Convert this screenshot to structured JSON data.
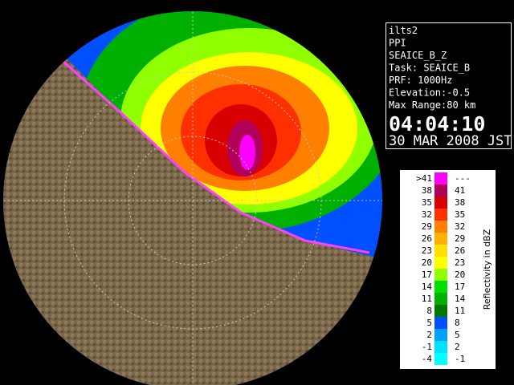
{
  "info": {
    "lines": [
      "ilts2",
      "PPI",
      "SEAICE_B_Z",
      "Task: SEAICE_B",
      "PRF: 1000Hz",
      "Elevation:-0.5",
      "Max Range:80 km"
    ],
    "time": "04:04:10",
    "date": "30 MAR 2008 JST"
  },
  "legend": {
    "title": "Reflectivity in dBZ",
    "rows": [
      {
        "low": ">41",
        "high": "---",
        "color": "#ff00ff"
      },
      {
        "low": "38",
        "high": "41",
        "color": "#b0005a"
      },
      {
        "low": "35",
        "high": "38",
        "color": "#d80000"
      },
      {
        "low": "32",
        "high": "35",
        "color": "#ff3000"
      },
      {
        "low": "29",
        "high": "32",
        "color": "#ff8000"
      },
      {
        "low": "26",
        "high": "29",
        "color": "#ffb000"
      },
      {
        "low": "23",
        "high": "26",
        "color": "#ffe000"
      },
      {
        "low": "20",
        "high": "23",
        "color": "#ffff00"
      },
      {
        "low": "17",
        "high": "20",
        "color": "#90ff00"
      },
      {
        "low": "14",
        "high": "17",
        "color": "#00e000"
      },
      {
        "low": "11",
        "high": "14",
        "color": "#00b000"
      },
      {
        "low": "8",
        "high": "11",
        "color": "#007800"
      },
      {
        "low": "5",
        "high": "8",
        "color": "#0050ff"
      },
      {
        "low": "2",
        "high": "5",
        "color": "#00a0ff"
      },
      {
        "low": "-1",
        "high": "2",
        "color": "#00e0ff"
      },
      {
        "low": "-4",
        "high": "-1",
        "color": "#00ffff"
      }
    ]
  }
}
